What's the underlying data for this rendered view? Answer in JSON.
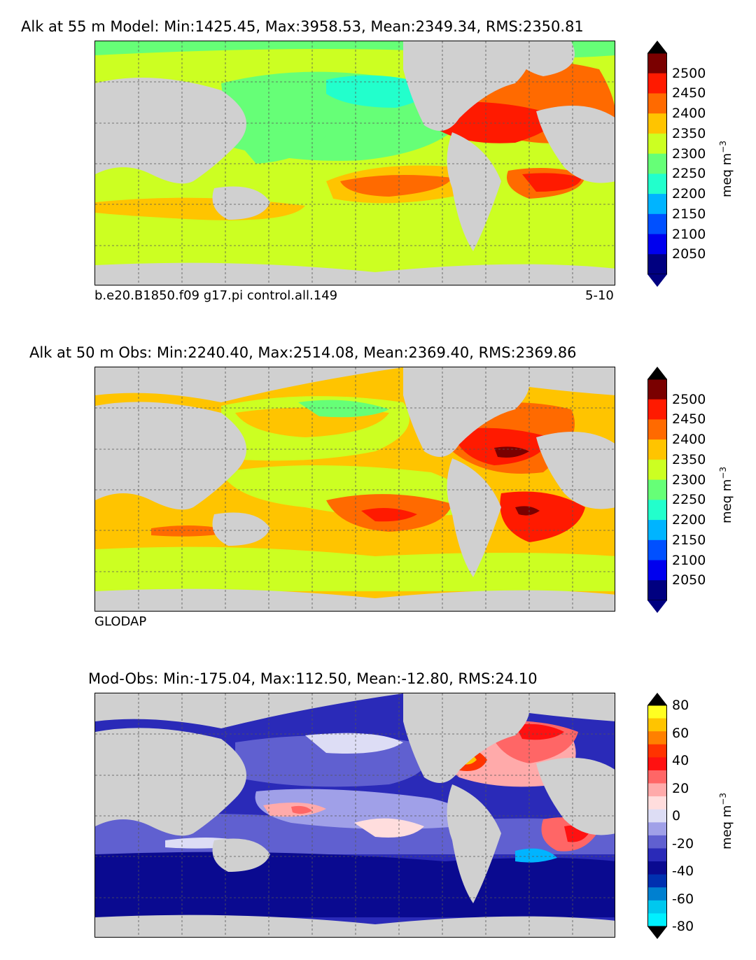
{
  "panels": [
    {
      "title": "Alk at 55 m Model: Min:1425.45, Max:3958.53, Mean:2349.34, RMS:2350.81",
      "left_note": "b.e20.B1850.f09 g17.pi control.all.149",
      "right_note": "5-10",
      "colorbar": {
        "ticks": [
          "2500",
          "2450",
          "2400",
          "2350",
          "2300",
          "2250",
          "2200",
          "2150",
          "2100",
          "2050"
        ],
        "units": "meq m",
        "units_exp": "−3",
        "colors": [
          "#7a0000",
          "#ff1a00",
          "#ff6a00",
          "#ffc400",
          "#ccff22",
          "#66ff77",
          "#22ffcc",
          "#00b4ff",
          "#0050ff",
          "#0000ee",
          "#000080"
        ]
      }
    },
    {
      "title": "Alk at 50 m Obs: Min:2240.40, Max:2514.08, Mean:2369.40, RMS:2369.86",
      "left_note": "GLODAP",
      "right_note": "",
      "colorbar": {
        "ticks": [
          "2500",
          "2450",
          "2400",
          "2350",
          "2300",
          "2250",
          "2200",
          "2150",
          "2100",
          "2050"
        ],
        "units": "meq m",
        "units_exp": "−3",
        "colors": [
          "#7a0000",
          "#ff1a00",
          "#ff6a00",
          "#ffc400",
          "#ccff22",
          "#66ff77",
          "#22ffcc",
          "#00b4ff",
          "#0050ff",
          "#0000ee",
          "#000080"
        ]
      }
    },
    {
      "title": "Mod-Obs: Min:-175.04, Max:112.50, Mean:-12.80, RMS:24.10",
      "left_note": "",
      "right_note": "",
      "colorbar": {
        "ticks": [
          "80",
          "60",
          "40",
          "20",
          "0",
          "-20",
          "-40",
          "-60",
          "-80"
        ],
        "units": "meq m",
        "units_exp": "−3",
        "colors": [
          "#ffff22",
          "#ffc400",
          "#ff8000",
          "#ff3300",
          "#ff1111",
          "#ff6666",
          "#ffaaaa",
          "#ffdddd",
          "#ddddf5",
          "#a0a0e8",
          "#6060d0",
          "#2a2ab8",
          "#0a0a90",
          "#0030b0",
          "#0080d0",
          "#00c8ee",
          "#00f0ff"
        ]
      }
    }
  ]
}
